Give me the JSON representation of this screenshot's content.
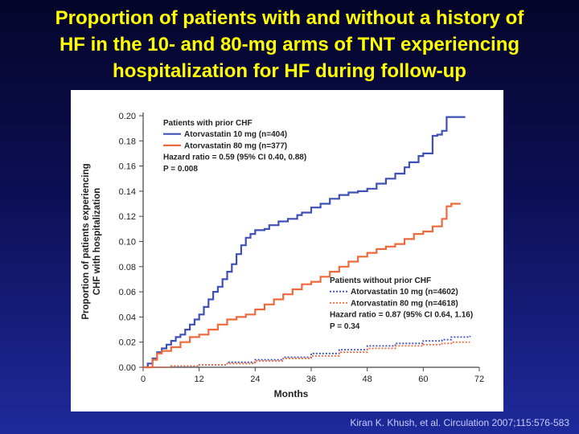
{
  "slide": {
    "title_lines": [
      "Proportion of patients with and without a history of",
      "HF in the 10- and 80-mg arms of TNT experiencing",
      "hospitalization for HF during follow-up"
    ],
    "citation": "Kiran K. Khush, et al. Circulation 2007;115:576-583",
    "colors": {
      "title": "#ffff00",
      "atorva10": "#3f4fb8",
      "atorva80": "#ee6a3c"
    }
  },
  "chart_data": {
    "type": "line",
    "xlabel": "Months",
    "ylabel_lines": [
      "Proportion of patients experiencing",
      "CHF with hospitalization"
    ],
    "xlim": [
      0,
      72
    ],
    "ylim": [
      0,
      0.2
    ],
    "xticks": [
      "0",
      "12",
      "24",
      "36",
      "48",
      "60",
      "72"
    ],
    "yticks": [
      "0.00",
      "0.02",
      "0.04",
      "0.06",
      "0.08",
      "0.10",
      "0.12",
      "0.14",
      "0.16",
      "0.18",
      "0.20"
    ],
    "grid": false,
    "legends": [
      {
        "heading": "Patients with prior CHF",
        "placement": "top-left",
        "entries": [
          "Atorvastatin 10 mg (n=404)",
          "Atorvastatin 80 mg (n=377)"
        ],
        "notes": [
          "Hazard ratio = 0.59 (95% CI 0.40, 0.88)",
          "P = 0.008"
        ]
      },
      {
        "heading": "Patients without prior CHF",
        "placement": "middle-right",
        "entries": [
          "Atorvastatin 10 mg (n=4602)",
          "Atorvastatin 80 mg (n=4618)"
        ],
        "notes": [
          "Hazard ratio = 0.87 (95% CI 0.64, 1.16)",
          "P = 0.34"
        ]
      }
    ],
    "series": [
      {
        "name": "Atorvastatin 10 mg (n=404)",
        "style": "solid",
        "color": "#3f4fb8",
        "points": [
          [
            0,
            0
          ],
          [
            1,
            0.003
          ],
          [
            2,
            0.007
          ],
          [
            3,
            0.012
          ],
          [
            4,
            0.015
          ],
          [
            5,
            0.018
          ],
          [
            6,
            0.021
          ],
          [
            7,
            0.024
          ],
          [
            8,
            0.026
          ],
          [
            9,
            0.03
          ],
          [
            10,
            0.034
          ],
          [
            11,
            0.038
          ],
          [
            12,
            0.042
          ],
          [
            13,
            0.048
          ],
          [
            14,
            0.054
          ],
          [
            15,
            0.06
          ],
          [
            16,
            0.064
          ],
          [
            17,
            0.07
          ],
          [
            18,
            0.076
          ],
          [
            19,
            0.082
          ],
          [
            20,
            0.09
          ],
          [
            21,
            0.097
          ],
          [
            22,
            0.103
          ],
          [
            23,
            0.106
          ],
          [
            24,
            0.109
          ],
          [
            26,
            0.11
          ],
          [
            27,
            0.113
          ],
          [
            29,
            0.116
          ],
          [
            31,
            0.118
          ],
          [
            33,
            0.121
          ],
          [
            34,
            0.123
          ],
          [
            36,
            0.127
          ],
          [
            38,
            0.13
          ],
          [
            40,
            0.134
          ],
          [
            42,
            0.137
          ],
          [
            44,
            0.139
          ],
          [
            46,
            0.14
          ],
          [
            48,
            0.142
          ],
          [
            50,
            0.146
          ],
          [
            52,
            0.15
          ],
          [
            54,
            0.154
          ],
          [
            56,
            0.159
          ],
          [
            57,
            0.163
          ],
          [
            59,
            0.168
          ],
          [
            60,
            0.17
          ],
          [
            62,
            0.184
          ],
          [
            63,
            0.185
          ],
          [
            64,
            0.188
          ],
          [
            65,
            0.199
          ],
          [
            69,
            0.199
          ]
        ]
      },
      {
        "name": "Atorvastatin 80 mg (n=377)",
        "style": "solid",
        "color": "#ee6a3c",
        "points": [
          [
            0,
            0
          ],
          [
            2,
            0.006
          ],
          [
            3,
            0.011
          ],
          [
            4,
            0.013
          ],
          [
            6,
            0.016
          ],
          [
            8,
            0.02
          ],
          [
            10,
            0.024
          ],
          [
            12,
            0.026
          ],
          [
            14,
            0.03
          ],
          [
            16,
            0.034
          ],
          [
            18,
            0.038
          ],
          [
            20,
            0.04
          ],
          [
            22,
            0.042
          ],
          [
            24,
            0.046
          ],
          [
            26,
            0.05
          ],
          [
            28,
            0.054
          ],
          [
            30,
            0.058
          ],
          [
            32,
            0.062
          ],
          [
            34,
            0.066
          ],
          [
            36,
            0.068
          ],
          [
            38,
            0.072
          ],
          [
            40,
            0.076
          ],
          [
            42,
            0.08
          ],
          [
            44,
            0.084
          ],
          [
            46,
            0.088
          ],
          [
            48,
            0.091
          ],
          [
            50,
            0.094
          ],
          [
            52,
            0.096
          ],
          [
            54,
            0.098
          ],
          [
            56,
            0.102
          ],
          [
            58,
            0.106
          ],
          [
            60,
            0.108
          ],
          [
            62,
            0.112
          ],
          [
            64,
            0.118
          ],
          [
            65,
            0.128
          ],
          [
            66,
            0.13
          ],
          [
            68,
            0.13
          ]
        ]
      },
      {
        "name": "Atorvastatin 10 mg (n=4602)",
        "style": "dotted",
        "color": "#3f4fb8",
        "points": [
          [
            0,
            0
          ],
          [
            6,
            0.001
          ],
          [
            12,
            0.002
          ],
          [
            18,
            0.004
          ],
          [
            24,
            0.006
          ],
          [
            30,
            0.008
          ],
          [
            36,
            0.011
          ],
          [
            42,
            0.014
          ],
          [
            48,
            0.017
          ],
          [
            54,
            0.019
          ],
          [
            60,
            0.021
          ],
          [
            64,
            0.022
          ],
          [
            66,
            0.024
          ],
          [
            70,
            0.025
          ]
        ]
      },
      {
        "name": "Atorvastatin 80 mg (n=4618)",
        "style": "dotted",
        "color": "#ee6a3c",
        "points": [
          [
            0,
            0
          ],
          [
            6,
            0.001
          ],
          [
            12,
            0.002
          ],
          [
            18,
            0.003
          ],
          [
            24,
            0.005
          ],
          [
            30,
            0.007
          ],
          [
            36,
            0.009
          ],
          [
            42,
            0.012
          ],
          [
            48,
            0.015
          ],
          [
            54,
            0.017
          ],
          [
            60,
            0.018
          ],
          [
            64,
            0.019
          ],
          [
            66,
            0.02
          ],
          [
            70,
            0.02
          ]
        ]
      }
    ]
  }
}
